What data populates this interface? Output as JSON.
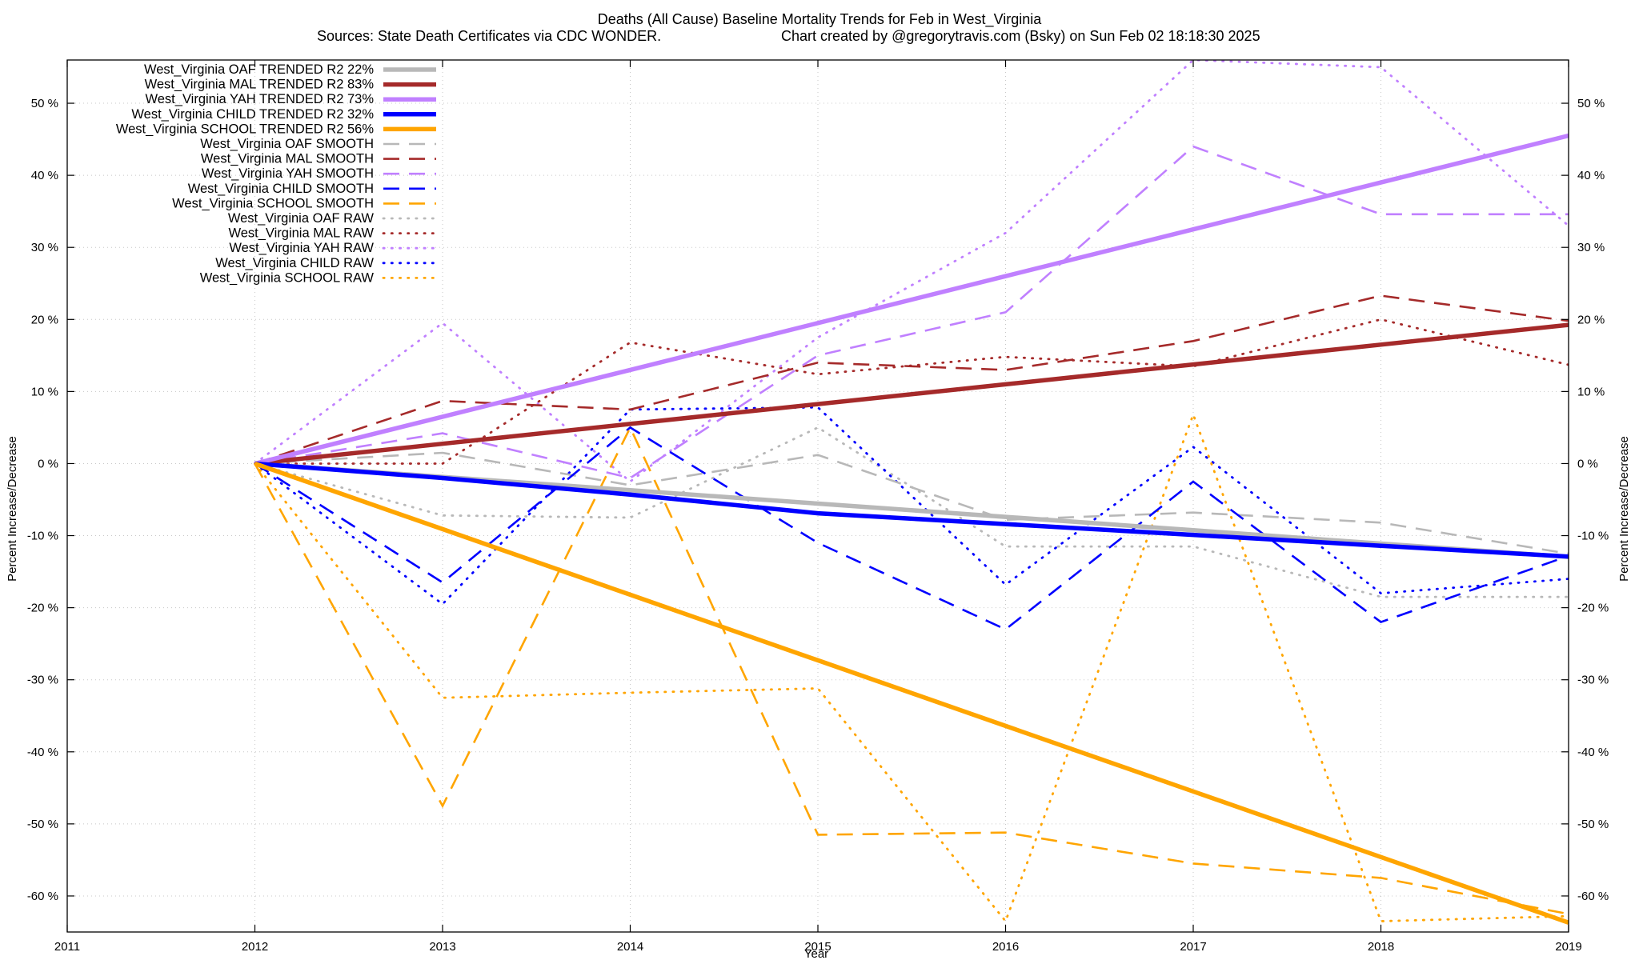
{
  "chart_data": {
    "type": "line",
    "title": "Deaths (All Cause)  Baseline Mortality Trends for Feb in West_Virginia",
    "subtitle_left": "Sources: State Death Certificates via CDC WONDER.",
    "subtitle_right": "Chart created by @gregorytravis.com (Bsky) on Sun Feb 02 18:18:30 2025",
    "xlabel": "Year",
    "ylabel": "Percent Increase/Decrease",
    "ylabel_right": "Percent Increase/Decrease",
    "xlim": [
      2011,
      2019
    ],
    "ylim": [
      -65,
      56
    ],
    "x_ticks": [
      "2011",
      "2012",
      "2013",
      "2014",
      "2015",
      "2016",
      "2017",
      "2018",
      "2019"
    ],
    "y_ticks": [
      {
        "value": 50,
        "label": "50 %"
      },
      {
        "value": 40,
        "label": "40 %"
      },
      {
        "value": 30,
        "label": "30 %"
      },
      {
        "value": 20,
        "label": "20 %"
      },
      {
        "value": 10,
        "label": "10 %"
      },
      {
        "value": 0,
        "label": "0 %"
      },
      {
        "value": -10,
        "label": "-10 %"
      },
      {
        "value": -20,
        "label": "-20 %"
      },
      {
        "value": -30,
        "label": "-30 %"
      },
      {
        "value": -40,
        "label": "-40 %"
      },
      {
        "value": -50,
        "label": "-50 %"
      },
      {
        "value": -60,
        "label": "-60 %"
      }
    ],
    "grid": true,
    "legend_position": "top-left",
    "x": [
      2012,
      2013,
      2014,
      2015,
      2016,
      2017,
      2018,
      2019
    ],
    "series": [
      {
        "name": "West_Virginia OAF TRENDED R2  22%",
        "style": "trend",
        "color": "#b8b8b8",
        "values": [
          0,
          -1.85,
          -3.7,
          -5.55,
          -7.4,
          -9.25,
          -11.1,
          -12.95
        ]
      },
      {
        "name": "West_Virginia MAL TRENDED R2  83%",
        "style": "trend",
        "color": "#a52a2a",
        "values": [
          0,
          2.75,
          5.5,
          8.25,
          11.0,
          13.75,
          16.5,
          19.25
        ]
      },
      {
        "name": "West_Virginia YAH TRENDED R2  73%",
        "style": "trend",
        "color": "#c080ff",
        "values": [
          0,
          6.5,
          13.0,
          19.5,
          26.0,
          32.5,
          39.0,
          45.5
        ]
      },
      {
        "name": "West_Virginia CHILD TRENDED R2  32%",
        "style": "trend",
        "color": "#0000ff",
        "values": [
          0,
          -2.0,
          -4.3,
          -6.9,
          -8.4,
          -9.9,
          -11.4,
          -12.9
        ]
      },
      {
        "name": "West_Virginia SCHOOL TRENDED R2  56%",
        "style": "trend",
        "color": "#ffa500",
        "values": [
          0,
          -9.1,
          -18.2,
          -27.3,
          -36.4,
          -45.5,
          -54.6,
          -63.7
        ]
      },
      {
        "name": "West_Virginia OAF SMOOTH",
        "style": "smooth",
        "color": "#b8b8b8",
        "values": [
          0,
          1.5,
          -3.0,
          1.2,
          -7.8,
          -6.8,
          -8.2,
          -12.5
        ]
      },
      {
        "name": "West_Virginia MAL SMOOTH",
        "style": "smooth",
        "color": "#a52a2a",
        "values": [
          0,
          8.7,
          7.5,
          14.0,
          13.0,
          17.0,
          23.3,
          19.8
        ]
      },
      {
        "name": "West_Virginia YAH SMOOTH",
        "style": "smooth",
        "color": "#c080ff",
        "values": [
          0,
          4.2,
          -2.0,
          15.0,
          21.0,
          44.0,
          34.6,
          34.6
        ]
      },
      {
        "name": "West_Virginia CHILD SMOOTH",
        "style": "smooth",
        "color": "#0000ff",
        "values": [
          0,
          -16.5,
          5.0,
          -11.0,
          -23.0,
          -2.5,
          -22.0,
          -12.8
        ]
      },
      {
        "name": "West_Virginia SCHOOL SMOOTH",
        "style": "smooth",
        "color": "#ffa500",
        "values": [
          0,
          -47.5,
          5.0,
          -51.5,
          -51.2,
          -55.5,
          -57.5,
          -62.5
        ]
      },
      {
        "name": "West_Virginia OAF RAW",
        "style": "raw",
        "color": "#b8b8b8",
        "values": [
          0,
          -7.2,
          -7.5,
          5.0,
          -11.5,
          -11.5,
          -18.5,
          -18.5
        ]
      },
      {
        "name": "West_Virginia MAL RAW",
        "style": "raw",
        "color": "#a52a2a",
        "values": [
          0,
          0.0,
          16.8,
          12.4,
          14.8,
          13.5,
          20.0,
          13.7
        ]
      },
      {
        "name": "West_Virginia YAH RAW",
        "style": "raw",
        "color": "#c080ff",
        "values": [
          0,
          19.5,
          -2.5,
          17.5,
          32.0,
          56.0,
          55.0,
          33.0
        ]
      },
      {
        "name": "West_Virginia CHILD RAW",
        "style": "raw",
        "color": "#0000ff",
        "values": [
          0,
          -19.5,
          7.5,
          7.8,
          -16.8,
          2.3,
          -18.0,
          -16.0
        ]
      },
      {
        "name": "West_Virginia SCHOOL RAW",
        "style": "raw",
        "color": "#ffa500",
        "values": [
          0,
          -32.5,
          -31.8,
          -31.2,
          -63.5,
          6.8,
          -63.5,
          -62.8
        ]
      }
    ]
  }
}
